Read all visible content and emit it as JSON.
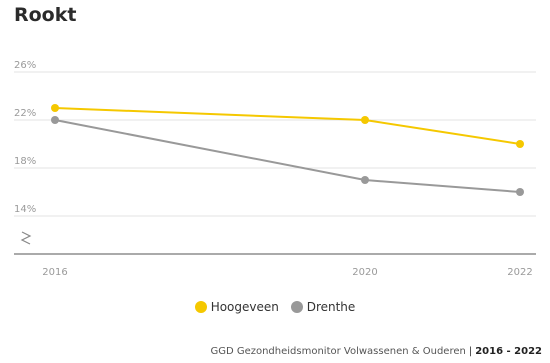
{
  "title": "Rookt",
  "chart_data": {
    "type": "line",
    "title": "Rookt",
    "x": [
      "2016",
      "2020",
      "2022"
    ],
    "ylim": [
      10,
      26
    ],
    "yticks": [
      14,
      18,
      22,
      26
    ],
    "ytick_labels": [
      "14%",
      "18%",
      "22%",
      "26%"
    ],
    "axis_break": true,
    "grid": true,
    "legend_position": "bottom",
    "series": [
      {
        "name": "Hoogeveen",
        "color": "#f5c800",
        "values": [
          23,
          22,
          20
        ]
      },
      {
        "name": "Drenthe",
        "color": "#999999",
        "values": [
          22,
          17,
          16
        ]
      }
    ]
  },
  "legend": [
    {
      "label": "Hoogeveen",
      "color": "#f5c800"
    },
    {
      "label": "Drenthe",
      "color": "#999999"
    }
  ],
  "source": {
    "text": "GGD Gezondheidsmonitor Volwassenen & Ouderen",
    "sep": "|",
    "years": "2016 - 2022"
  }
}
